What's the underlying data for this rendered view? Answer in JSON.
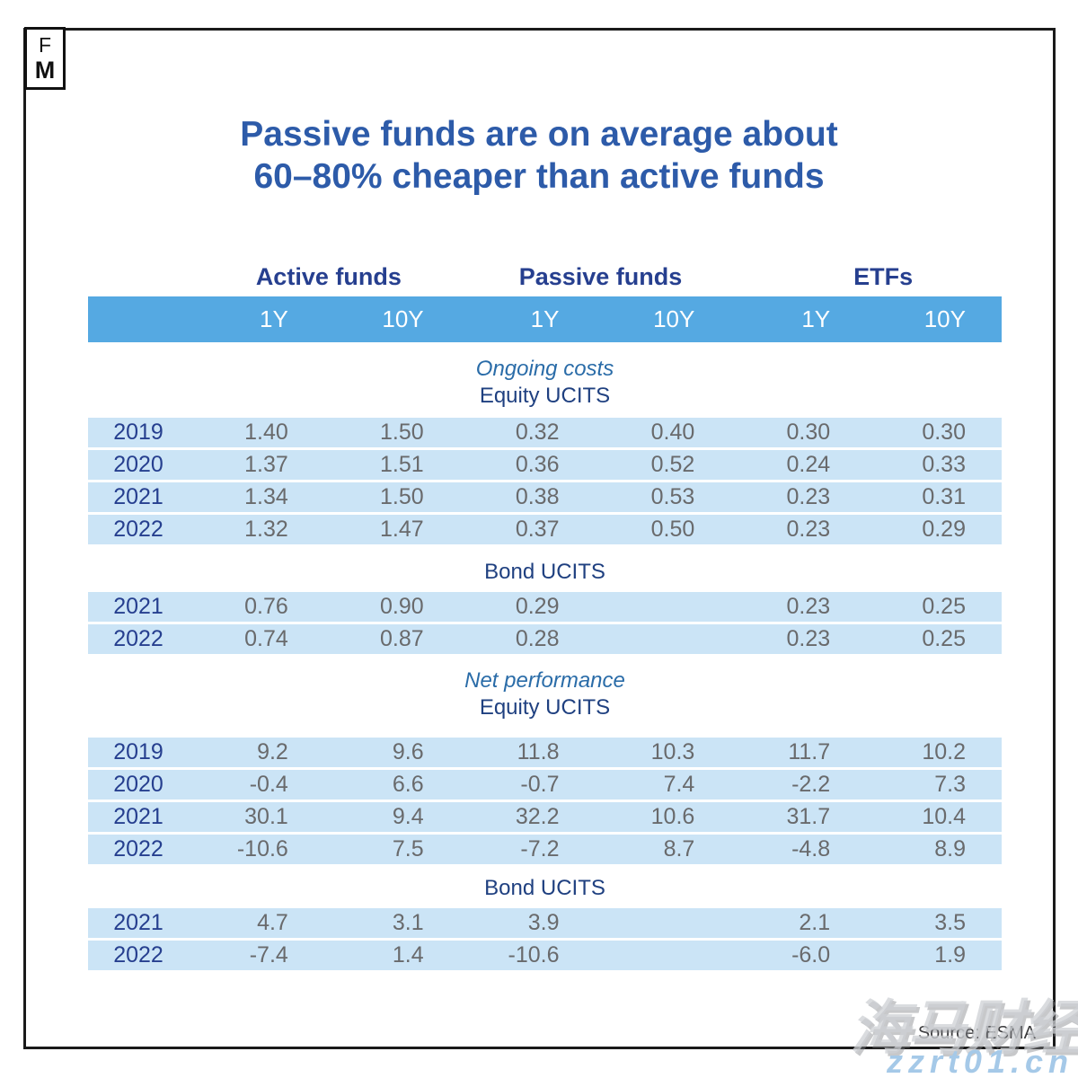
{
  "logo": {
    "top": "F",
    "bottom": "M"
  },
  "title": {
    "line1": "Passive funds are on average about",
    "line2": "60–80% cheaper than active funds"
  },
  "chart_data": {
    "type": "table",
    "title": "Passive funds are on average about 60–80% cheaper than active funds",
    "column_groups": [
      "Active funds",
      "Passive funds",
      "ETFs"
    ],
    "columns": [
      "1Y",
      "10Y",
      "1Y",
      "10Y",
      "1Y",
      "10Y"
    ],
    "sections": [
      {
        "label": "Ongoing costs",
        "blocks": [
          {
            "label": "Equity UCITS",
            "rows": [
              {
                "year": "2019",
                "values": [
                  "1.40",
                  "1.50",
                  "0.32",
                  "0.40",
                  "0.30",
                  "0.30"
                ]
              },
              {
                "year": "2020",
                "values": [
                  "1.37",
                  "1.51",
                  "0.36",
                  "0.52",
                  "0.24",
                  "0.33"
                ]
              },
              {
                "year": "2021",
                "values": [
                  "1.34",
                  "1.50",
                  "0.38",
                  "0.53",
                  "0.23",
                  "0.31"
                ]
              },
              {
                "year": "2022",
                "values": [
                  "1.32",
                  "1.47",
                  "0.37",
                  "0.50",
                  "0.23",
                  "0.29"
                ]
              }
            ]
          },
          {
            "label": "Bond UCITS",
            "rows": [
              {
                "year": "2021",
                "values": [
                  "0.76",
                  "0.90",
                  "0.29",
                  "",
                  "0.23",
                  "0.25"
                ]
              },
              {
                "year": "2022",
                "values": [
                  "0.74",
                  "0.87",
                  "0.28",
                  "",
                  "0.23",
                  "0.25"
                ]
              }
            ]
          }
        ]
      },
      {
        "label": "Net performance",
        "blocks": [
          {
            "label": "Equity UCITS",
            "rows": [
              {
                "year": "2019",
                "values": [
                  "9.2",
                  "9.6",
                  "11.8",
                  "10.3",
                  "11.7",
                  "10.2"
                ]
              },
              {
                "year": "2020",
                "values": [
                  "-0.4",
                  "6.6",
                  "-0.7",
                  "7.4",
                  "-2.2",
                  "7.3"
                ]
              },
              {
                "year": "2021",
                "values": [
                  "30.1",
                  "9.4",
                  "32.2",
                  "10.6",
                  "31.7",
                  "10.4"
                ]
              },
              {
                "year": "2022",
                "values": [
                  "-10.6",
                  "7.5",
                  "-7.2",
                  "8.7",
                  "-4.8",
                  "8.9"
                ]
              }
            ]
          },
          {
            "label": "Bond UCITS",
            "rows": [
              {
                "year": "2021",
                "values": [
                  "4.7",
                  "3.1",
                  "3.9",
                  "",
                  "2.1",
                  "3.5"
                ]
              },
              {
                "year": "2022",
                "values": [
                  "-7.4",
                  "1.4",
                  "-10.6",
                  "",
                  "-6.0",
                  "1.9"
                ]
              }
            ]
          }
        ]
      }
    ],
    "source": "Source: ESMA"
  },
  "watermark": {
    "text": "海马财经",
    "url": "zzrt01.cn"
  },
  "colors": {
    "header_bar": "#55A9E2",
    "row_fill": "#CBE4F6",
    "title_blue": "#2D5BA9",
    "navy": "#263F8F",
    "metric_blue": "#2A6CA8",
    "value_gray": "#696A6C",
    "frame_black": "#1A1A1A",
    "watermark_blue": "#A5C9E8"
  }
}
